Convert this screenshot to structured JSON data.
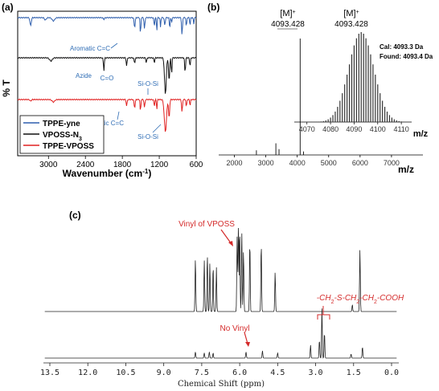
{
  "chart_data": [
    {
      "type": "line",
      "panel_label": "(a)",
      "xlabel": "Wavenumber (cm",
      "xlabel_sup": "-1",
      "xlabel_end": ")",
      "ylabel": "% T",
      "xlim": [
        3500,
        600
      ],
      "x_ticks": [
        3000,
        2400,
        1800,
        1200,
        600
      ],
      "legend_position": "bottom-left",
      "series": [
        {
          "name": "TPPE-yne",
          "color": "#2f5fad"
        },
        {
          "name": "VPOSS-N",
          "name_sub": "3",
          "color": "#111111"
        },
        {
          "name": "TPPE-VPOSS",
          "color": "#e02020"
        }
      ],
      "annotations": [
        {
          "text": "Aromatic C=C",
          "series": "TPPE-yne",
          "x": 1510
        },
        {
          "text": "Azide",
          "series": "VPOSS-N3",
          "x": 2100
        },
        {
          "text": "C=O",
          "series": "VPOSS-N3",
          "x": 1720
        },
        {
          "text": "Si-O-Si",
          "series": "VPOSS-N3",
          "x": 1100
        },
        {
          "text": "Aromatic C=C",
          "series": "TPPE-VPOSS",
          "x": 1510
        },
        {
          "text": "Si-O-Si",
          "series": "TPPE-VPOSS",
          "x": 1100
        }
      ]
    },
    {
      "type": "line",
      "panel_label": "(b)",
      "xlabel": "m/z",
      "xlim": [
        1500,
        8000
      ],
      "x_ticks": [
        2000,
        3000,
        4000,
        5000,
        6000,
        7000
      ],
      "peak_label": "[M]",
      "peak_label_sup": "+",
      "peak_value": "4093.428",
      "peak_x": 4093.428,
      "minor_peaks": [
        {
          "x": 2700,
          "y": 0.04
        },
        {
          "x": 3320,
          "y": 0.1
        },
        {
          "x": 3420,
          "y": 0.05
        },
        {
          "x": 4093.4,
          "y": 1.0
        },
        {
          "x": 4200,
          "y": 0.03
        }
      ],
      "inset": {
        "xlabel": "m/z",
        "xlim": [
          4066,
          4112
        ],
        "x_ticks": [
          4070,
          4080,
          4090,
          4100,
          4110
        ],
        "peak_label": "[M]",
        "peak_label_sup": "+",
        "peak_value": "4093.428",
        "calculated": "Cal: 4093.3 Da",
        "found": "Found: 4093.4 Da"
      }
    },
    {
      "type": "line",
      "panel_label": "(c)",
      "xlabel": "Chemical Shift (ppm)",
      "xlim": [
        13.5,
        0.0
      ],
      "x_ticks": [
        "13.5",
        "12.0",
        "10.5",
        "9.0",
        "7.5",
        "6.0",
        "4.5",
        "3.0",
        "1.5",
        "0.0"
      ],
      "spectra": [
        {
          "name": "top",
          "peaks": [
            {
              "x": 7.75,
              "y": 0.6
            },
            {
              "x": 7.4,
              "y": 0.58
            },
            {
              "x": 7.28,
              "y": 0.65
            },
            {
              "x": 7.18,
              "y": 0.55
            },
            {
              "x": 7.05,
              "y": 0.52
            },
            {
              "x": 6.92,
              "y": 0.5
            },
            {
              "x": 6.1,
              "y": 0.85
            },
            {
              "x": 6.05,
              "y": 1.0
            },
            {
              "x": 6.0,
              "y": 0.95
            },
            {
              "x": 5.92,
              "y": 0.92
            },
            {
              "x": 5.85,
              "y": 0.7
            },
            {
              "x": 5.6,
              "y": 0.8
            },
            {
              "x": 5.15,
              "y": 0.78
            },
            {
              "x": 4.6,
              "y": 0.45
            },
            {
              "x": 1.55,
              "y": 0.08
            },
            {
              "x": 1.25,
              "y": 0.7
            }
          ]
        },
        {
          "name": "bottom",
          "peaks": [
            {
              "x": 7.75,
              "y": 0.12
            },
            {
              "x": 7.4,
              "y": 0.1
            },
            {
              "x": 7.2,
              "y": 0.12
            },
            {
              "x": 7.05,
              "y": 0.1
            },
            {
              "x": 5.75,
              "y": 0.12
            },
            {
              "x": 5.1,
              "y": 0.14
            },
            {
              "x": 4.5,
              "y": 0.1
            },
            {
              "x": 3.2,
              "y": 0.25
            },
            {
              "x": 2.85,
              "y": 0.35
            },
            {
              "x": 2.75,
              "y": 0.95
            },
            {
              "x": 2.65,
              "y": 0.5
            },
            {
              "x": 1.6,
              "y": 0.08
            },
            {
              "x": 1.15,
              "y": 0.22
            }
          ]
        }
      ],
      "annotations": [
        {
          "text": "Vinyl of VPOSS"
        },
        {
          "text": "No Vinyl"
        },
        {
          "text": "-CH2-S-CH2-CH2-COOH"
        }
      ]
    }
  ],
  "colors": {
    "ir_blue": "#2f5fad",
    "ir_black": "#111111",
    "ir_red": "#e02020",
    "annotation_blue": "#2f6db5",
    "annotation_red": "#d42a2a"
  }
}
